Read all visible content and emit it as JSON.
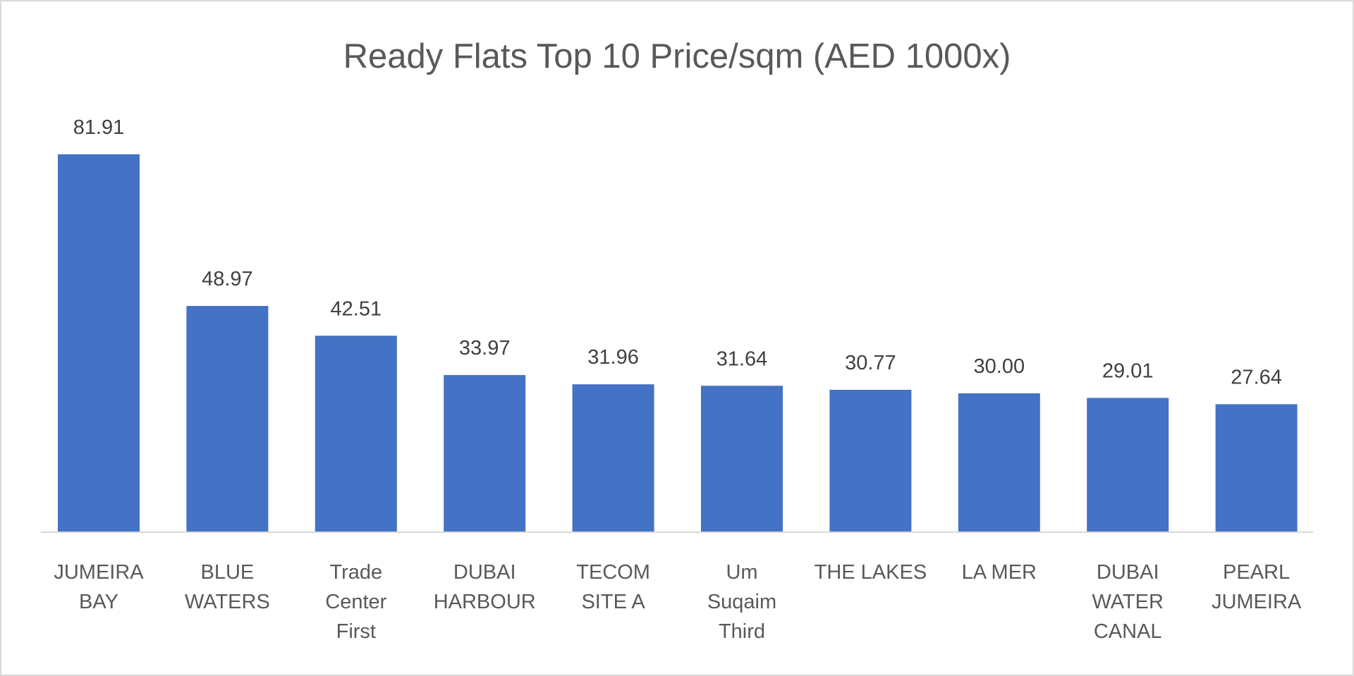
{
  "chart_data": {
    "type": "bar",
    "title": "Ready Flats Top 10 Price/sqm (AED 1000x)",
    "categories": [
      [
        "JUMEIRA",
        "BAY"
      ],
      [
        "BLUE",
        "WATERS"
      ],
      [
        "Trade",
        "Center",
        "First"
      ],
      [
        "DUBAI",
        "HARBOUR"
      ],
      [
        "TECOM",
        "SITE A"
      ],
      [
        "Um",
        "Suqaim",
        "Third"
      ],
      [
        "THE LAKES"
      ],
      [
        "LA MER"
      ],
      [
        "DUBAI",
        "WATER",
        "CANAL"
      ],
      [
        "PEARL",
        "JUMEIRA"
      ]
    ],
    "values": [
      81.91,
      48.97,
      42.51,
      33.97,
      31.96,
      31.64,
      30.77,
      30.0,
      29.01,
      27.64
    ],
    "data_labels": [
      "81.91",
      "48.97",
      "42.51",
      "33.97",
      "31.96",
      "31.64",
      "30.77",
      "30.00",
      "29.01",
      "27.64"
    ],
    "xlabel": "",
    "ylabel": "",
    "ylim": [
      0,
      90
    ],
    "grid": false,
    "legend": "none",
    "bar_color": "#4472C4"
  }
}
